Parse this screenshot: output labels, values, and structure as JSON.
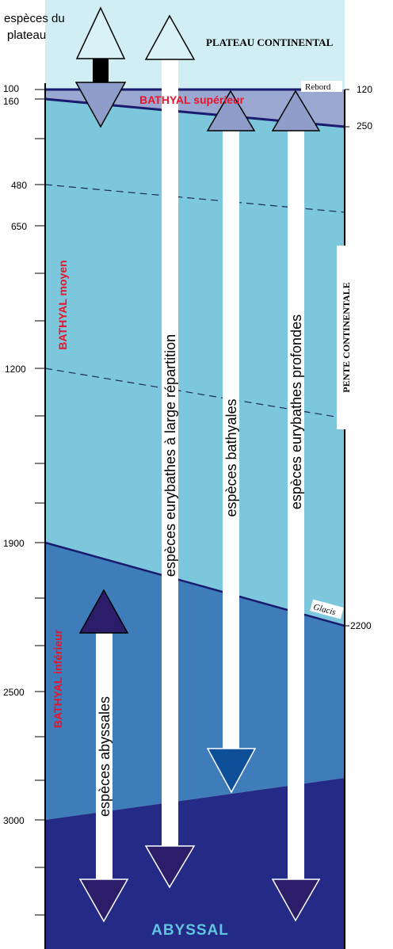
{
  "labels": {
    "shelf_species": [
      "espèces du",
      "plateau"
    ],
    "continental_shelf": "PLATEAU CONTINENTAL",
    "upper_bathyal": "BATHYAL supérieur",
    "middle_bathyal": "BATHYAL moyen",
    "lower_bathyal": "BATHYAL inférieur",
    "abyssal": "ABYSSAL",
    "continental_slope": "PENTE CONTINENTALE",
    "shelf_break": "Rebord",
    "continental_rise": "Glacis",
    "wide_range_eurybathic": "espèces eurybathes à large répartition",
    "bathyal_species": "espèces bathyales",
    "deep_eurybathic": "espèces eurybathes profondes",
    "abyssal_species": "espèces abyssales"
  },
  "depths_left": [
    "100",
    "160",
    "480",
    "650",
    "1200",
    "1900",
    "2500",
    "3000"
  ],
  "depths_right": [
    "120",
    "250",
    "2200"
  ],
  "colors": {
    "shelf": "#d2eef5",
    "upper_bathyal": "#9aa7d0",
    "middle_bathyal": "#7cc7dc",
    "lower_bathyal": "#3e7cba",
    "abyssal": "#232b86",
    "red_label": "#e8142a",
    "abyssal_label": "#5fc6e0",
    "dark_triangle": "#2b1d6a",
    "blue_triangle": "#0e4f9a",
    "grey_triangle": "#8e9dc9",
    "light_triangle": "#d9f2f7"
  }
}
